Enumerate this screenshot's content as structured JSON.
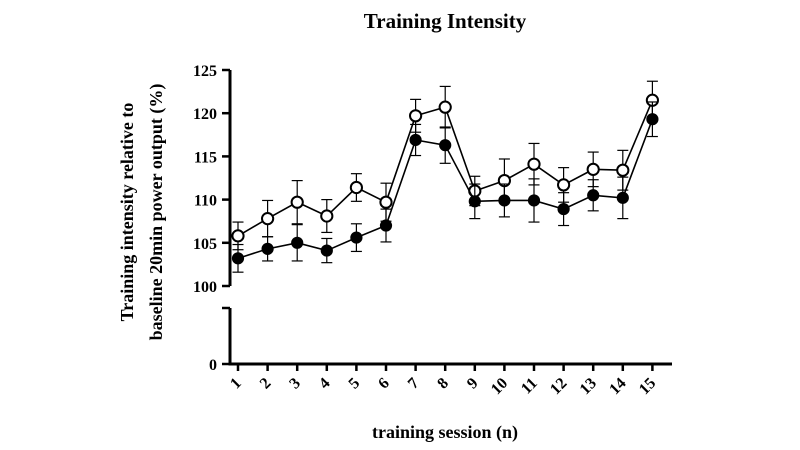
{
  "chart_data": {
    "type": "line",
    "title": "Training Intensity",
    "xlabel": "training session (n)",
    "ylabel_lines": [
      "Training intensity relative to",
      "baseline 20min power output (%)"
    ],
    "x": [
      1,
      2,
      3,
      4,
      5,
      6,
      7,
      8,
      9,
      10,
      11,
      12,
      13,
      14,
      15
    ],
    "y_ticks": [
      0,
      100,
      105,
      110,
      115,
      120,
      125
    ],
    "ylim_upper": [
      100,
      125
    ],
    "ylim_lower": [
      0,
      0
    ],
    "y_axis_break": true,
    "series": [
      {
        "marker": "open-circle",
        "values": [
          105.8,
          107.8,
          109.7,
          108.1,
          111.4,
          109.7,
          119.7,
          120.7,
          111.0,
          112.2,
          114.1,
          111.7,
          113.5,
          113.4,
          121.5
        ],
        "errors": [
          1.6,
          2.1,
          2.5,
          1.9,
          1.6,
          2.2,
          1.9,
          2.4,
          1.7,
          2.5,
          2.4,
          2.0,
          2.0,
          2.3,
          2.2
        ]
      },
      {
        "marker": "filled-circle",
        "values": [
          103.2,
          104.3,
          105.0,
          104.1,
          105.6,
          107.0,
          116.9,
          116.3,
          109.8,
          109.9,
          109.9,
          108.9,
          110.5,
          110.2,
          119.3
        ],
        "errors": [
          1.6,
          1.4,
          2.1,
          1.4,
          1.6,
          1.9,
          1.8,
          2.1,
          2.0,
          1.9,
          2.5,
          1.9,
          1.8,
          2.4,
          2.0
        ]
      }
    ]
  }
}
